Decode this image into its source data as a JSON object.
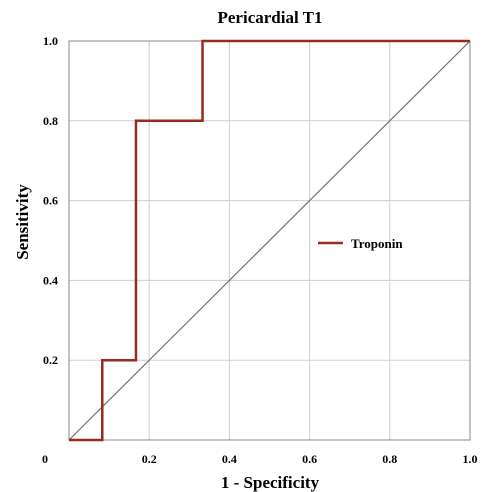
{
  "chart_data": {
    "type": "line",
    "title": "Pericardial T1",
    "xlabel": "1 - Specificity",
    "ylabel": "Sensitivity",
    "xlim": [
      0,
      1
    ],
    "ylim": [
      0,
      1
    ],
    "x_ticks": [
      "0",
      "0.2",
      "0.4",
      "0.6",
      "0.8",
      "1.0"
    ],
    "y_ticks": [
      "0.2",
      "0.4",
      "0.6",
      "0.8",
      "1.0"
    ],
    "grid": true,
    "legend_position": "right",
    "series": [
      {
        "name": "Troponin",
        "color": "#9b2a1f",
        "x": [
          0,
          0.083,
          0.083,
          0.167,
          0.167,
          0.333,
          0.333,
          1.0
        ],
        "y": [
          0,
          0,
          0.2,
          0.2,
          0.8,
          0.8,
          1.0,
          1.0
        ]
      }
    ],
    "reference_line": {
      "color": "#707070",
      "x": [
        0,
        1
      ],
      "y": [
        0,
        1
      ]
    }
  }
}
